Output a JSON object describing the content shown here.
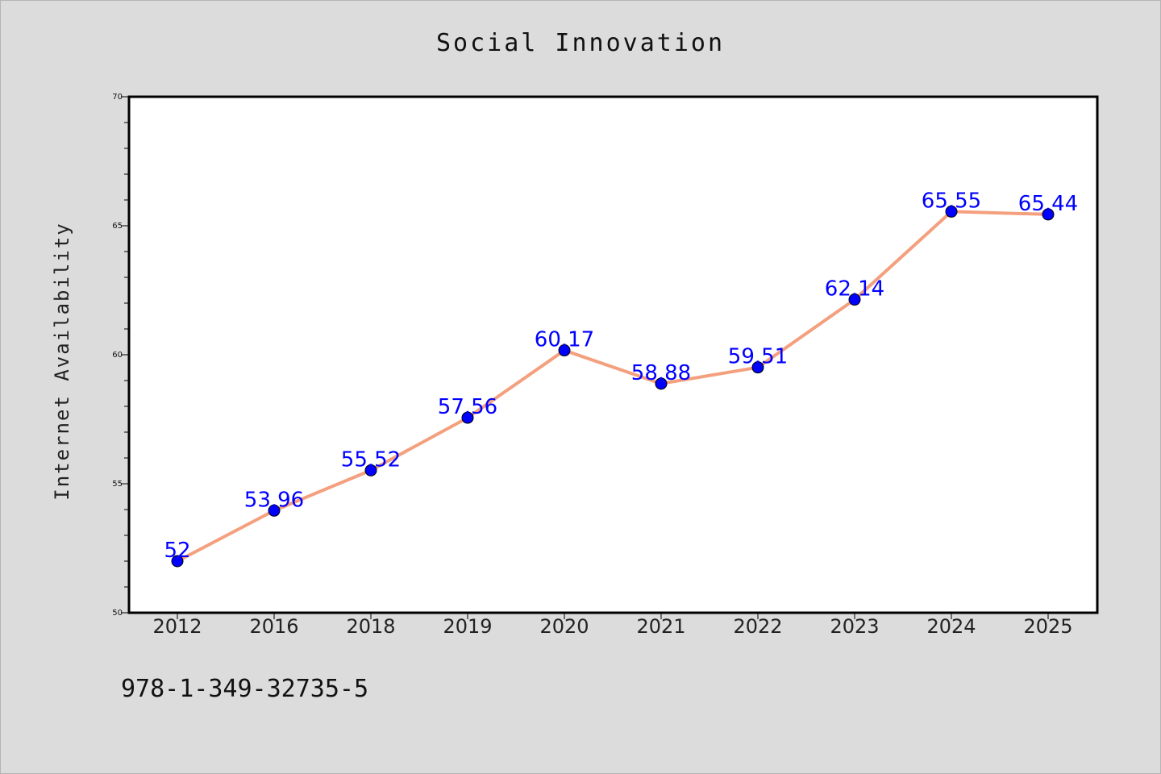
{
  "chart_data": {
    "type": "line",
    "title": "Social Innovation",
    "xlabel": "",
    "ylabel": "Internet Availability",
    "categories": [
      "2012",
      "2016",
      "2018",
      "2019",
      "2020",
      "2021",
      "2022",
      "2023",
      "2024",
      "2025"
    ],
    "series": [
      {
        "values": [
          52,
          53.96,
          55.52,
          57.56,
          60.17,
          58.88,
          59.51,
          62.14,
          65.55,
          65.44
        ],
        "data_labels": [
          "52",
          "53.96",
          "55.52",
          "57.56",
          "60.17",
          "58.88",
          "59.51",
          "62.14",
          "65.55",
          "65.44"
        ],
        "line_color": "#f4a07e",
        "marker_color": "#0000ff"
      }
    ],
    "ylim": [
      50,
      70
    ],
    "yticks": [
      "50",
      "55",
      "60",
      "65",
      "70"
    ],
    "grid": false,
    "legend": "none"
  },
  "footnote": "978-1-349-32735-5",
  "colors": {
    "background": "#dcdcdc",
    "plot_background": "#ffffff",
    "line": "#f4a07e",
    "marker": "#0000ff",
    "label": "#0000ff"
  }
}
